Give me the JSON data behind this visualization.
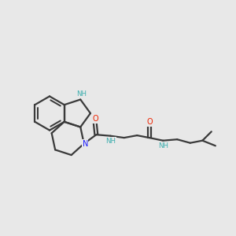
{
  "background_color": "#e8e8e8",
  "bond_color": "#3a3a3a",
  "bond_lw": 1.6,
  "n_color_blue": "#1a1aff",
  "n_color_teal": "#3aadad",
  "o_color": "#ee2200",
  "figsize": [
    3.0,
    3.0
  ],
  "dpi": 100,
  "xlim": [
    0,
    10
  ],
  "ylim": [
    0,
    10
  ]
}
